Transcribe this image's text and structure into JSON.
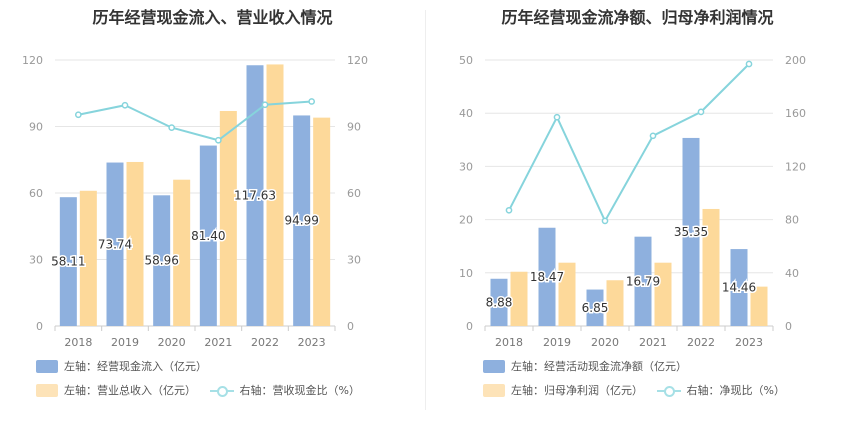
{
  "chart_data": [
    {
      "type": "bar",
      "title": "历年经营现金流入、营业收入情况",
      "categories": [
        "2018",
        "2019",
        "2020",
        "2021",
        "2022",
        "2023"
      ],
      "left_axis": {
        "ticks": [
          "0",
          "30",
          "60",
          "90",
          "120"
        ],
        "range": [
          0,
          120
        ]
      },
      "right_axis": {
        "ticks": [
          "0",
          "30",
          "60",
          "90",
          "120"
        ],
        "range": [
          0,
          120
        ]
      },
      "series": [
        {
          "name": "左轴：经营现金流入（亿元）",
          "type": "bar",
          "axis": "left",
          "color": "#8eb0de",
          "values": [
            58.11,
            73.74,
            58.96,
            81.4,
            117.63,
            94.99
          ],
          "labels": [
            "58.11",
            "73.74",
            "58.96",
            "81.40",
            "117.63",
            "94.99"
          ]
        },
        {
          "name": "左轴：营业总收入（亿元）",
          "type": "bar",
          "axis": "left",
          "color": "#fdd99a",
          "values": [
            61,
            74,
            66,
            97,
            118,
            94
          ]
        },
        {
          "name": "右轴：营收现金比（%）",
          "type": "line",
          "axis": "right",
          "color": "#86d4dc",
          "values": [
            95.3,
            99.6,
            89.5,
            83.8,
            99.8,
            101.3
          ]
        }
      ],
      "grid": true,
      "legend": "bottom"
    },
    {
      "type": "bar",
      "title": "历年经营现金流净额、归母净利润情况",
      "categories": [
        "2018",
        "2019",
        "2020",
        "2021",
        "2022",
        "2023"
      ],
      "left_axis": {
        "ticks": [
          "0",
          "10",
          "20",
          "30",
          "40",
          "50"
        ],
        "range": [
          0,
          50
        ]
      },
      "right_axis": {
        "ticks": [
          "0",
          "40",
          "80",
          "120",
          "160",
          "200"
        ],
        "range": [
          0,
          200
        ]
      },
      "series": [
        {
          "name": "左轴：经营活动现金流净额（亿元）",
          "type": "bar",
          "axis": "left",
          "color": "#8eb0de",
          "values": [
            8.88,
            18.47,
            6.85,
            16.79,
            35.35,
            14.46
          ],
          "labels": [
            "8.88",
            "18.47",
            "6.85",
            "16.79",
            "35.35",
            "14.46"
          ]
        },
        {
          "name": "左轴：归母净利润（亿元）",
          "type": "bar",
          "axis": "left",
          "color": "#fdd99a",
          "values": [
            10.2,
            11.9,
            8.6,
            11.9,
            22.0,
            7.4
          ]
        },
        {
          "name": "右轴：净现比（%）",
          "type": "line",
          "axis": "right",
          "color": "#86d4dc",
          "values": [
            87,
            157,
            79,
            143,
            161,
            197
          ]
        }
      ],
      "grid": true,
      "legend": "bottom"
    }
  ]
}
